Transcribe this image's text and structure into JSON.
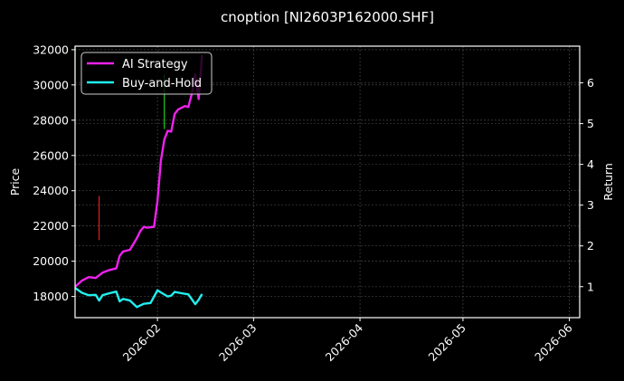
{
  "chart_data": {
    "type": "line",
    "title": "cnoption [NI2603P162000.SHF]",
    "xlabel": "",
    "ylabel": "Price",
    "y2label": "Return",
    "x_ticks": [
      "2026-02",
      "2026-03",
      "2026-04",
      "2026-05",
      "2026-06"
    ],
    "y_ticks": [
      18000,
      20000,
      22000,
      24000,
      26000,
      28000,
      30000,
      32000
    ],
    "y2_ticks": [
      1,
      2,
      3,
      4,
      5,
      6
    ],
    "ylim": [
      16800,
      32200
    ],
    "y2lim": [
      0.24,
      6.9
    ],
    "xlim": [
      "2026-01-08",
      "2026-06-04"
    ],
    "grid": true,
    "legend_position": "upper left",
    "background": "#000000",
    "series": [
      {
        "name": "AI Strategy",
        "color": "#ee22ee",
        "axis": "price",
        "x": [
          "2026-01-08",
          "2026-01-10",
          "2026-01-12",
          "2026-01-14",
          "2026-01-16",
          "2026-01-18",
          "2026-01-20",
          "2026-01-21",
          "2026-01-22",
          "2026-01-24",
          "2026-01-26",
          "2026-01-27",
          "2026-01-28",
          "2026-01-29",
          "2026-01-31",
          "2026-02-01",
          "2026-02-02",
          "2026-02-03",
          "2026-02-04",
          "2026-02-05",
          "2026-02-06",
          "2026-02-07",
          "2026-02-09",
          "2026-02-10",
          "2026-02-11",
          "2026-02-12",
          "2026-02-13",
          "2026-02-14"
        ],
        "values": [
          18550,
          18900,
          19100,
          19050,
          19350,
          19500,
          19600,
          20300,
          20550,
          20650,
          21300,
          21700,
          21950,
          21900,
          21950,
          23400,
          25700,
          26900,
          27400,
          27350,
          28350,
          28600,
          28800,
          28750,
          29500,
          30600,
          29200,
          31700
        ]
      },
      {
        "name": "Buy-and-Hold",
        "color": "#22eeee",
        "axis": "return",
        "x": [
          "2026-01-08",
          "2026-01-10",
          "2026-01-12",
          "2026-01-14",
          "2026-01-15",
          "2026-01-16",
          "2026-01-18",
          "2026-01-20",
          "2026-01-21",
          "2026-01-22",
          "2026-01-24",
          "2026-01-26",
          "2026-01-28",
          "2026-01-30",
          "2026-02-01",
          "2026-02-02",
          "2026-02-04",
          "2026-02-05",
          "2026-02-06",
          "2026-02-08",
          "2026-02-10",
          "2026-02-12",
          "2026-02-13",
          "2026-02-14"
        ],
        "values": [
          0.97,
          0.85,
          0.79,
          0.8,
          0.66,
          0.79,
          0.84,
          0.88,
          0.64,
          0.7,
          0.66,
          0.5,
          0.58,
          0.6,
          0.91,
          0.86,
          0.76,
          0.78,
          0.87,
          0.84,
          0.81,
          0.57,
          0.68,
          0.82
        ]
      }
    ],
    "annotations": [
      {
        "type": "vertical-bar",
        "color": "#22cc22",
        "x": "2026-01-08",
        "from": 30200,
        "to": 32200
      },
      {
        "type": "vertical-bar",
        "color": "#dd2222",
        "x": "2026-01-15",
        "from": 21200,
        "to": 23700
      },
      {
        "type": "vertical-bar",
        "color": "#22cc22",
        "x": "2026-02-03",
        "from": 27500,
        "to": 30600
      }
    ]
  },
  "legend": {
    "items": [
      {
        "label": "AI Strategy",
        "color": "#ee22ee"
      },
      {
        "label": "Buy-and-Hold",
        "color": "#22eeee"
      }
    ]
  }
}
